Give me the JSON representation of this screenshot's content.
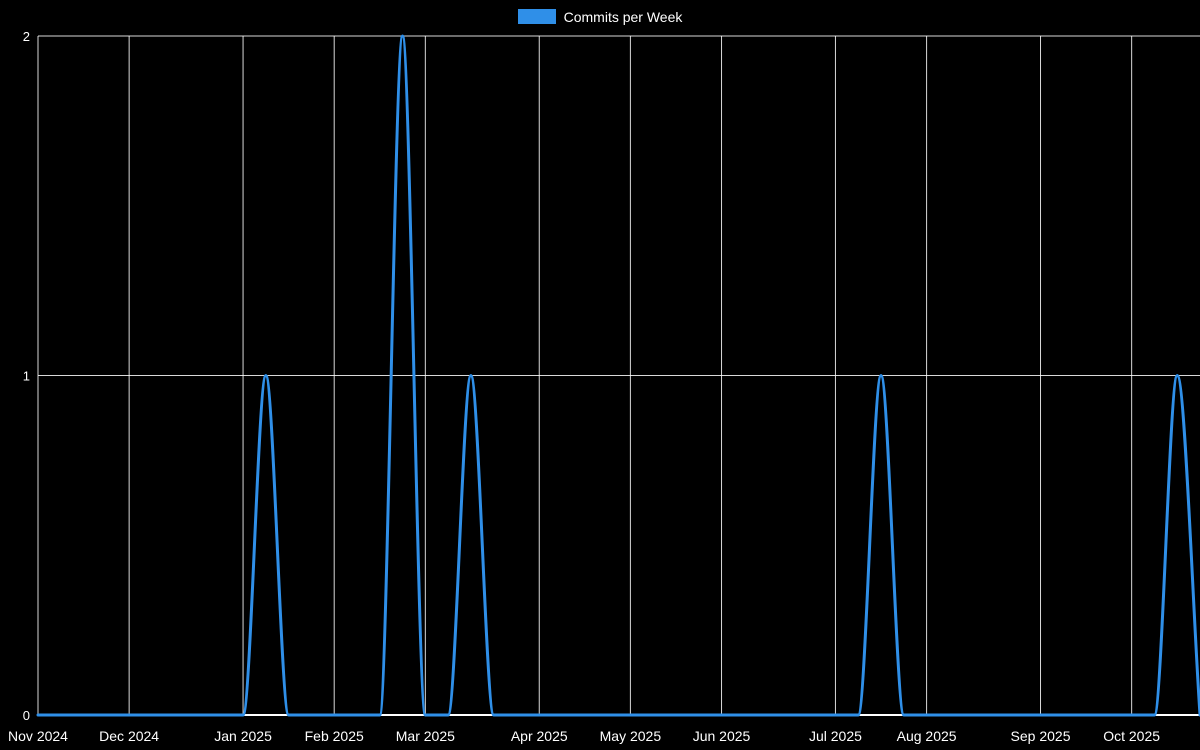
{
  "window": {
    "background": "#000000"
  },
  "chart_data": {
    "type": "line",
    "title": "",
    "xlabel": "",
    "ylabel": "",
    "legend": {
      "position": "top",
      "entries": [
        "Commits per Week"
      ],
      "swatch_color": "#2f8fe8"
    },
    "grid": true,
    "grid_color": "#ffffff",
    "axis_color": "#ffffff",
    "text_color": "#ffffff",
    "ylim": [
      0,
      2
    ],
    "y_ticks": [
      0,
      1,
      2
    ],
    "y_tick_labels": [
      "0",
      "1",
      "2"
    ],
    "x_tick_labels": [
      "Nov 2024",
      "Dec 2024",
      "Jan 2025",
      "Feb 2025",
      "Mar 2025",
      "Apr 2025",
      "May 2025",
      "Jun 2025",
      "Jul 2025",
      "Aug 2025",
      "Sep 2025",
      "Oct 2025"
    ],
    "x_tick_week_indices": [
      0,
      4,
      9,
      13,
      17,
      22,
      26,
      30,
      35,
      39,
      44,
      48
    ],
    "weeks_per_point": 1,
    "series": [
      {
        "name": "Commits per Week",
        "color": "#2f8fe8",
        "line_width": 3,
        "values": [
          0,
          0,
          0,
          0,
          0,
          0,
          0,
          0,
          0,
          0,
          1,
          0,
          0,
          0,
          0,
          0,
          2,
          0,
          0,
          1,
          0,
          0,
          0,
          0,
          0,
          0,
          0,
          0,
          0,
          0,
          0,
          0,
          0,
          0,
          0,
          0,
          0,
          1,
          0,
          0,
          0,
          0,
          0,
          0,
          0,
          0,
          0,
          0,
          0,
          0,
          1,
          0
        ]
      }
    ],
    "nonzero_points": [
      {
        "approx_week": "mid Jan 2025",
        "commits": 1
      },
      {
        "approx_week": "late Feb 2025",
        "commits": 2
      },
      {
        "approx_week": "mid Mar 2025",
        "commits": 1
      },
      {
        "approx_week": "mid-late Jul 2025",
        "commits": 1
      },
      {
        "approx_week": "mid-late Oct 2025",
        "commits": 1
      }
    ]
  }
}
